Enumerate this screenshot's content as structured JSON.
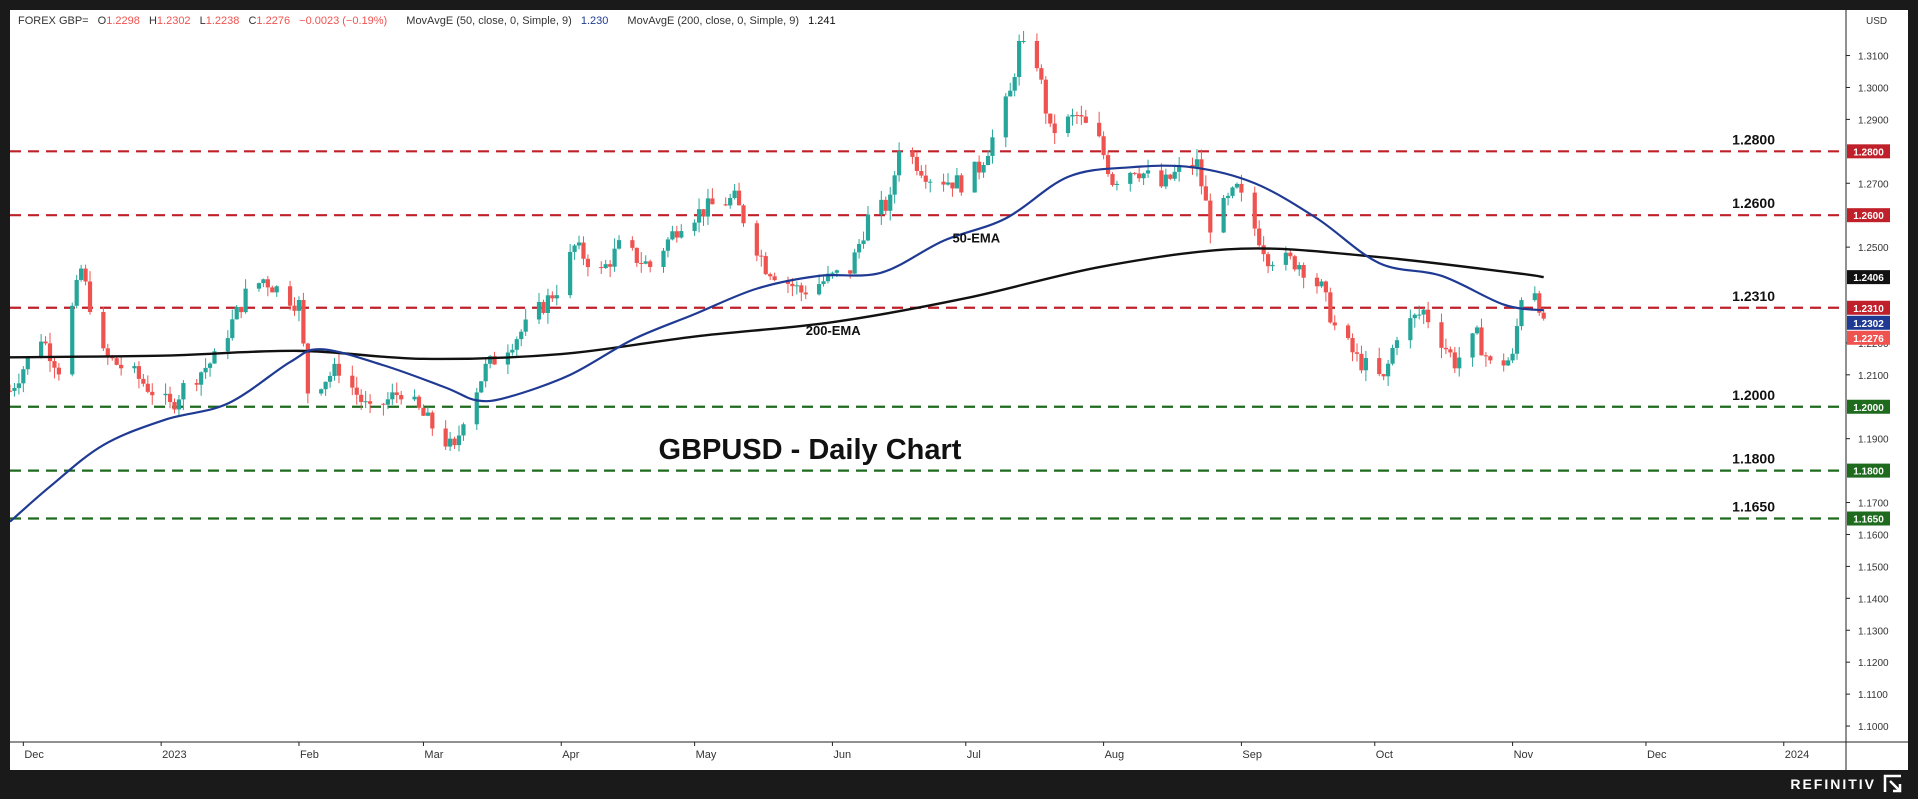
{
  "legend": {
    "symbol": "FOREX GBP=",
    "open_label": "O",
    "open": "1.2298",
    "high_label": "H",
    "high": "1.2302",
    "low_label": "L",
    "low": "1.2238",
    "close_label": "C",
    "close": "1.2276",
    "change": "−0.0023 (−0.19%)",
    "ma50_label": "MovAvgE (50, close, 0, Simple, 9)",
    "ma50_value": "1.230",
    "ma200_label": "MovAvgE (200, close, 0, Simple, 9)",
    "ma200_value": "1.241"
  },
  "brand": "REFINITIV",
  "colors": {
    "up": "#26a69a",
    "down": "#ef5350",
    "ema50": "#1f3a93",
    "ema200": "#111111",
    "resistance": "#c0202a",
    "support": "#1e6b1e",
    "price_tag": "#ef5350"
  },
  "chart_data": {
    "type": "candlestick",
    "title": "GBPUSD - Daily Chart",
    "currency_label": "USD",
    "ylim": [
      1.095,
      1.318
    ],
    "x_range": [
      "2022-11-28",
      "2024-01-15"
    ],
    "x_ticks": [
      {
        "date": "2022-12-01",
        "label": "Dec"
      },
      {
        "date": "2023-01-01",
        "label": "2023"
      },
      {
        "date": "2023-02-01",
        "label": "Feb"
      },
      {
        "date": "2023-03-01",
        "label": "Mar"
      },
      {
        "date": "2023-04-01",
        "label": "Apr"
      },
      {
        "date": "2023-05-01",
        "label": "May"
      },
      {
        "date": "2023-06-01",
        "label": "Jun"
      },
      {
        "date": "2023-07-01",
        "label": "Jul"
      },
      {
        "date": "2023-08-01",
        "label": "Aug"
      },
      {
        "date": "2023-09-01",
        "label": "Sep"
      },
      {
        "date": "2023-10-01",
        "label": "Oct"
      },
      {
        "date": "2023-11-01",
        "label": "Nov"
      },
      {
        "date": "2023-12-01",
        "label": "Dec"
      },
      {
        "date": "2024-01-01",
        "label": "2024"
      }
    ],
    "y_ticks": [
      "1.1000",
      "1.1100",
      "1.1200",
      "1.1300",
      "1.1400",
      "1.1500",
      "1.1600",
      "1.1700",
      "1.1900",
      "1.2100",
      "1.2200",
      "1.2500",
      "1.2700",
      "1.2900",
      "1.3000",
      "1.3100"
    ],
    "levels": [
      {
        "value": 1.28,
        "label": "1.2800",
        "kind": "resistance"
      },
      {
        "value": 1.26,
        "label": "1.2600",
        "kind": "resistance"
      },
      {
        "value": 1.231,
        "label": "1.2310",
        "kind": "resistance"
      },
      {
        "value": 1.2,
        "label": "1.2000",
        "kind": "support"
      },
      {
        "value": 1.18,
        "label": "1.1800",
        "kind": "support"
      },
      {
        "value": 1.165,
        "label": "1.1650",
        "kind": "support"
      }
    ],
    "price_tags": [
      {
        "value": 1.28,
        "label": "1.2800",
        "color": "#c0202a"
      },
      {
        "value": 1.26,
        "label": "1.2600",
        "color": "#c0202a"
      },
      {
        "value": 1.2406,
        "label": "1.2406",
        "color": "#111111"
      },
      {
        "value": 1.231,
        "label": "1.2310",
        "color": "#c0202a"
      },
      {
        "value": 1.2302,
        "label": "1.2302",
        "color": "#1f3a93"
      },
      {
        "value": 1.2276,
        "label": "1.2276",
        "color": "#ef5350"
      },
      {
        "value": 1.2,
        "label": "1.2000",
        "color": "#1e6b1e"
      },
      {
        "value": 1.18,
        "label": "1.1800",
        "color": "#1e6b1e"
      },
      {
        "value": 1.165,
        "label": "1.1650",
        "color": "#1e6b1e"
      }
    ],
    "annotations": [
      {
        "text": "50-EMA",
        "date": "2023-06-28",
        "value": 1.2515
      },
      {
        "text": "200-EMA",
        "date": "2023-05-26",
        "value": 1.2225
      }
    ],
    "close_path": [
      [
        "2022-11-28",
        1.205
      ],
      [
        "2022-12-05",
        1.222
      ],
      [
        "2022-12-09",
        1.212
      ],
      [
        "2022-12-14",
        1.243
      ],
      [
        "2022-12-19",
        1.216
      ],
      [
        "2022-12-26",
        1.21
      ],
      [
        "2023-01-03",
        1.2
      ],
      [
        "2023-01-06",
        1.206
      ],
      [
        "2023-01-13",
        1.215
      ],
      [
        "2023-01-20",
        1.235
      ],
      [
        "2023-01-24",
        1.24
      ],
      [
        "2023-02-01",
        1.232
      ],
      [
        "2023-02-03",
        1.205
      ],
      [
        "2023-02-10",
        1.212
      ],
      [
        "2023-02-17",
        1.198
      ],
      [
        "2023-02-24",
        1.205
      ],
      [
        "2023-03-01",
        1.197
      ],
      [
        "2023-03-08",
        1.186
      ],
      [
        "2023-03-10",
        1.197
      ],
      [
        "2023-03-15",
        1.212
      ],
      [
        "2023-03-24",
        1.225
      ],
      [
        "2023-03-31",
        1.237
      ],
      [
        "2023-04-04",
        1.25
      ],
      [
        "2023-04-10",
        1.242
      ],
      [
        "2023-04-14",
        1.25
      ],
      [
        "2023-04-21",
        1.244
      ],
      [
        "2023-04-28",
        1.258
      ],
      [
        "2023-05-05",
        1.263
      ],
      [
        "2023-05-10",
        1.265
      ],
      [
        "2023-05-17",
        1.244
      ],
      [
        "2023-05-25",
        1.236
      ],
      [
        "2023-05-31",
        1.24
      ],
      [
        "2023-06-05",
        1.243
      ],
      [
        "2023-06-09",
        1.259
      ],
      [
        "2023-06-14",
        1.264
      ],
      [
        "2023-06-16",
        1.282
      ],
      [
        "2023-06-23",
        1.272
      ],
      [
        "2023-06-30",
        1.27
      ],
      [
        "2023-07-04",
        1.275
      ],
      [
        "2023-07-07",
        1.284
      ],
      [
        "2023-07-11",
        1.298
      ],
      [
        "2023-07-13",
        1.313
      ],
      [
        "2023-07-17",
        1.308
      ],
      [
        "2023-07-20",
        1.286
      ],
      [
        "2023-07-26",
        1.291
      ],
      [
        "2023-07-31",
        1.283
      ],
      [
        "2023-08-03",
        1.271
      ],
      [
        "2023-08-08",
        1.275
      ],
      [
        "2023-08-14",
        1.269
      ],
      [
        "2023-08-18",
        1.274
      ],
      [
        "2023-08-22",
        1.276
      ],
      [
        "2023-08-25",
        1.257
      ],
      [
        "2023-08-31",
        1.268
      ],
      [
        "2023-09-07",
        1.247
      ],
      [
        "2023-09-14",
        1.245
      ],
      [
        "2023-09-19",
        1.237
      ],
      [
        "2023-09-22",
        1.225
      ],
      [
        "2023-09-27",
        1.215
      ],
      [
        "2023-10-03",
        1.208
      ],
      [
        "2023-10-06",
        1.223
      ],
      [
        "2023-10-12",
        1.23
      ],
      [
        "2023-10-19",
        1.214
      ],
      [
        "2023-10-24",
        1.222
      ],
      [
        "2023-10-27",
        1.213
      ],
      [
        "2023-11-01",
        1.215
      ],
      [
        "2023-11-03",
        1.235
      ],
      [
        "2023-11-06",
        1.237
      ],
      [
        "2023-11-08",
        1.2276
      ]
    ],
    "ema50": [
      [
        "2022-11-28",
        1.164
      ],
      [
        "2022-12-07",
        1.175
      ],
      [
        "2022-12-19",
        1.188
      ],
      [
        "2023-01-02",
        1.196
      ],
      [
        "2023-01-16",
        1.201
      ],
      [
        "2023-01-30",
        1.214
      ],
      [
        "2023-02-06",
        1.218
      ],
      [
        "2023-02-20",
        1.213
      ],
      [
        "2023-03-06",
        1.206
      ],
      [
        "2023-03-13",
        1.202
      ],
      [
        "2023-03-20",
        1.203
      ],
      [
        "2023-04-03",
        1.21
      ],
      [
        "2023-04-17",
        1.221
      ],
      [
        "2023-05-01",
        1.229
      ],
      [
        "2023-05-15",
        1.237
      ],
      [
        "2023-05-29",
        1.241
      ],
      [
        "2023-06-12",
        1.242
      ],
      [
        "2023-06-26",
        1.252
      ],
      [
        "2023-07-10",
        1.259
      ],
      [
        "2023-07-24",
        1.272
      ],
      [
        "2023-08-07",
        1.275
      ],
      [
        "2023-08-21",
        1.275
      ],
      [
        "2023-09-04",
        1.27
      ],
      [
        "2023-09-18",
        1.259
      ],
      [
        "2023-10-02",
        1.245
      ],
      [
        "2023-10-16",
        1.241
      ],
      [
        "2023-10-30",
        1.232
      ],
      [
        "2023-11-08",
        1.2302
      ]
    ],
    "ema200": [
      [
        "2022-11-28",
        1.2155
      ],
      [
        "2023-01-01",
        1.216
      ],
      [
        "2023-02-01",
        1.2175
      ],
      [
        "2023-03-01",
        1.215
      ],
      [
        "2023-04-01",
        1.2165
      ],
      [
        "2023-05-01",
        1.222
      ],
      [
        "2023-06-01",
        1.2265
      ],
      [
        "2023-07-01",
        1.234
      ],
      [
        "2023-08-01",
        1.244
      ],
      [
        "2023-09-01",
        1.2495
      ],
      [
        "2023-10-01",
        1.247
      ],
      [
        "2023-11-01",
        1.242
      ],
      [
        "2023-11-08",
        1.2406
      ]
    ]
  }
}
